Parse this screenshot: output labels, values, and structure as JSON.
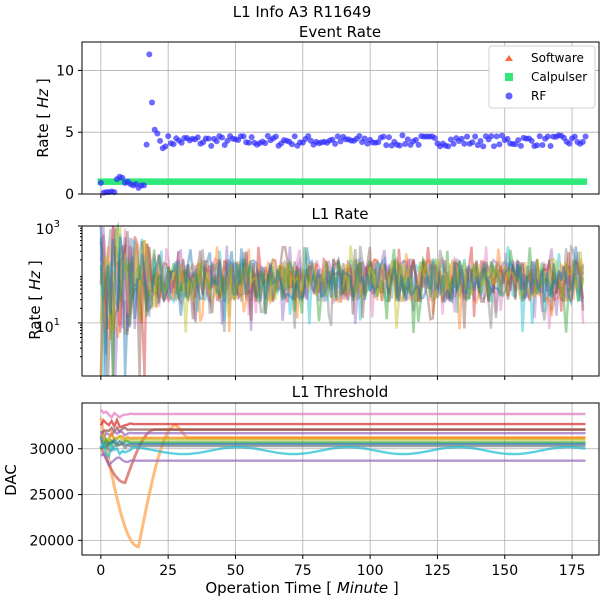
{
  "figure": {
    "suptitle": "L1 Info A3 R11649",
    "xlabel_prefix": "Operation Time [ ",
    "xlabel_unit": "Minute",
    "xlabel_suffix": " ]"
  },
  "chart_data": [
    {
      "id": "event_rate",
      "type": "scatter",
      "title": "Event Rate",
      "ylabel_prefix": "Rate [ ",
      "ylabel_unit": "Hz",
      "ylabel_suffix": " ]",
      "xlim": [
        -7,
        185
      ],
      "ylim": [
        0,
        12.3
      ],
      "yticks": [
        0,
        5,
        10
      ],
      "xticks": [
        0,
        25,
        50,
        75,
        100,
        125,
        150,
        175
      ],
      "legend": "top-right",
      "series": [
        {
          "name": "Software",
          "marker": "triangle",
          "color": "#ff6a3d"
        },
        {
          "name": "Calpulser",
          "marker": "square",
          "color": "#2ee87a",
          "value": 1.0
        },
        {
          "name": "RF",
          "marker": "circle",
          "color": "#2f2bff",
          "points": [
            [
              0,
              0.9
            ],
            [
              1,
              0.1
            ],
            [
              2,
              0.15
            ],
            [
              3,
              0.15
            ],
            [
              4,
              0.2
            ],
            [
              5,
              0.15
            ],
            [
              6,
              1.2
            ],
            [
              7,
              1.4
            ],
            [
              8,
              1.3
            ],
            [
              9,
              0.9
            ],
            [
              10,
              1.0
            ],
            [
              11,
              0.8
            ],
            [
              12,
              0.7
            ],
            [
              13,
              0.8
            ],
            [
              14,
              0.5
            ],
            [
              15,
              0.7
            ],
            [
              16,
              0.7
            ],
            [
              17,
              4.0
            ],
            [
              18,
              11.3
            ],
            [
              19,
              7.4
            ],
            [
              20,
              5.2
            ],
            [
              21,
              4.9
            ],
            [
              22,
              4.3
            ],
            [
              23,
              3.7
            ]
          ],
          "steady_mean": 4.3,
          "steady_spread": 0.45,
          "steady_range": [
            24,
            180
          ]
        }
      ]
    },
    {
      "id": "l1_rate",
      "type": "line",
      "title": "L1 Rate",
      "ylabel_prefix": "Rate [ ",
      "ylabel_unit": "Hz",
      "ylabel_suffix": " ]",
      "yscale": "log",
      "ylim": [
        0.8,
        1000
      ],
      "yticks": [
        {
          "base": "10",
          "exp": "3"
        },
        {
          "base": "10",
          "exp": "1"
        }
      ],
      "xlim": [
        -7,
        185
      ],
      "xticks": [
        0,
        25,
        50,
        75,
        100,
        125,
        150,
        175
      ],
      "series_colors": [
        "#e377c2",
        "#7f7f7f",
        "#d62728",
        "#17becf",
        "#ff7f0e",
        "#9467bd",
        "#8c564b",
        "#2ca02c",
        "#bcbd22",
        "#1f77b4"
      ],
      "steady_level_hz": 75,
      "steady_low_hz": 12,
      "steady_high_hz": 330
    },
    {
      "id": "l1_threshold",
      "type": "line",
      "title": "L1 Threshold",
      "ylabel": "DAC",
      "xlim": [
        -7,
        185
      ],
      "ylim": [
        18400,
        35000
      ],
      "yticks": [
        20000,
        25000,
        30000
      ],
      "xticks": [
        0,
        25,
        50,
        75,
        100,
        125,
        150,
        175
      ],
      "xticklabels": [
        "0",
        "25",
        "50",
        "75",
        "100",
        "125",
        "150",
        "175"
      ],
      "levels": [
        {
          "color": "#e377c2",
          "value": 33800
        },
        {
          "color": "#d62728",
          "value": 32700
        },
        {
          "color": "#8c564b",
          "value": 32100
        },
        {
          "color": "#9467bd",
          "value": 31700
        },
        {
          "color": "#ff7f0e",
          "value": 31200
        },
        {
          "color": "#bcbd22",
          "value": 31000
        },
        {
          "color": "#2ca02c",
          "value": 30700
        },
        {
          "color": "#1f77b4",
          "value": 30500
        },
        {
          "color": "#7f7f7f",
          "value": 30300
        },
        {
          "color": "#17becf",
          "value": 29800
        },
        {
          "color": "#9467bd",
          "value": 28700
        }
      ],
      "dip_series": {
        "color": "#ffb066",
        "min_value": 19300,
        "min_time": 14,
        "end_time": 28
      },
      "dip2_series": {
        "color": "#d4625c",
        "min_value": 26300,
        "min_time": 9
      }
    }
  ]
}
